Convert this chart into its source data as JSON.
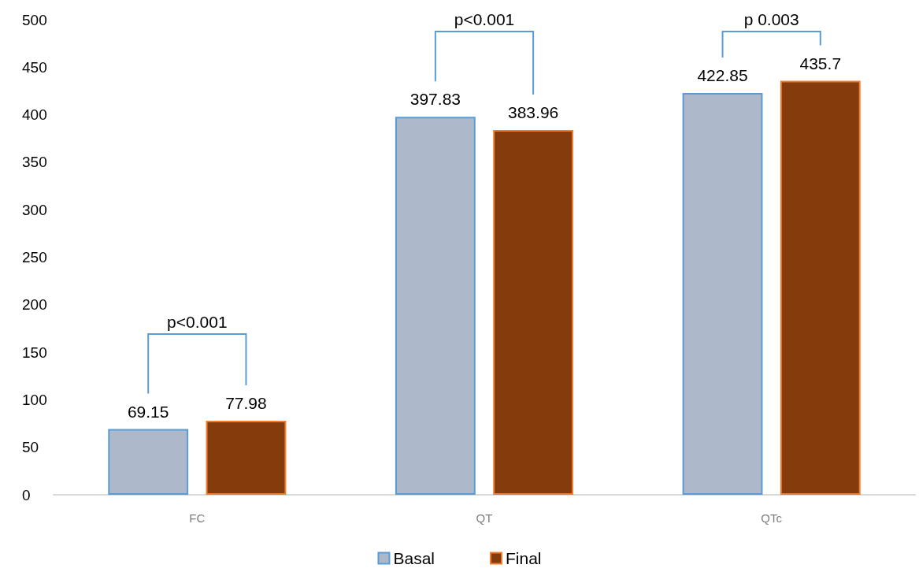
{
  "chart_data": {
    "type": "bar",
    "categories": [
      "FC",
      "QT",
      "QTc"
    ],
    "series": [
      {
        "name": "Basal",
        "color": "#adb9ca",
        "values": [
          69.15,
          397.83,
          422.85
        ]
      },
      {
        "name": "Final",
        "color": "#843c0c",
        "values": [
          77.98,
          383.96,
          435.7
        ]
      }
    ],
    "ylim": [
      0,
      500
    ],
    "yticks": [
      0,
      50,
      100,
      150,
      200,
      250,
      300,
      350,
      400,
      450,
      500
    ],
    "grid": false,
    "legend": "bottom",
    "data_labels": true,
    "annotations": [
      "p<0.001",
      "p<0.001",
      "p 0.003"
    ]
  }
}
